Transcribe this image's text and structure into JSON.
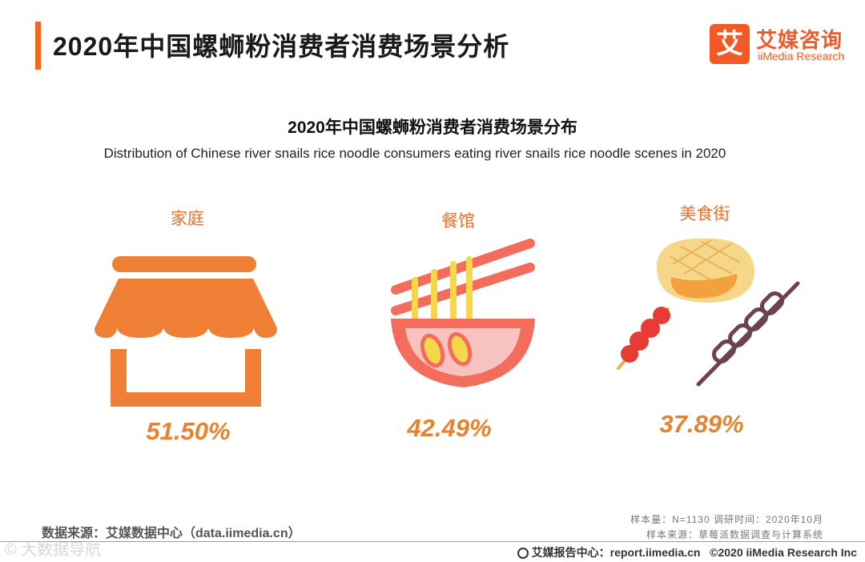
{
  "header": {
    "title": "2020年中国螺蛳粉消费者消费场景分析",
    "logo_mark": "艾",
    "logo_cn": "艾媒咨询",
    "logo_en": "iiMedia Research"
  },
  "chart_data": {
    "type": "table",
    "title": "2020年中国螺蛳粉消费者消费场景分布",
    "subtitle": "Distribution of Chinese river snails rice noodle consumers eating river snails rice noodle scenes in 2020",
    "categories": [
      "家庭",
      "餐馆",
      "美食街"
    ],
    "values": [
      51.5,
      42.49,
      37.89
    ],
    "value_labels": [
      "51.50%",
      "42.49%",
      "37.89%"
    ],
    "unit": "%",
    "icons": [
      "storefront-icon",
      "noodle-bowl-icon",
      "street-food-icon"
    ]
  },
  "footer": {
    "source": "数据来源：艾媒数据中心（data.iimedia.cn）",
    "sample": "样本量：N=1130    调研时间：2020年10月",
    "sample_source": "样本来源：草莓派数据调查与计算系统",
    "report_center": "艾媒报告中心：report.iimedia.cn",
    "copyright": "©2020  iiMedia Research  Inc",
    "watermark": "© 大数据导航"
  },
  "colors": {
    "accent": "#f0691e",
    "value_orange": "#e8822e",
    "icon_orange": "#ef7f35"
  }
}
